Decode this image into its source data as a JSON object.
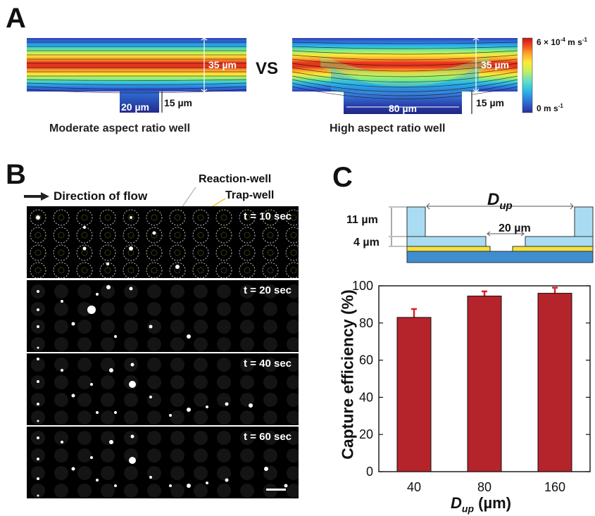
{
  "panelA": {
    "letter": "A",
    "vs_label": "VS",
    "left_caption": "Moderate aspect ratio well",
    "right_caption": "High aspect ratio well",
    "left_channel_height": "35 µm",
    "left_well_width": "20 µm",
    "left_well_depth": "15 µm",
    "right_channel_height": "35 µm",
    "right_well_width": "80 µm",
    "right_well_depth": "15 µm",
    "colorbar_max": "6 × 10",
    "colorbar_max_exp": "-4",
    "colorbar_max_unit": " m s",
    "colorbar_max_unit_exp": "-1",
    "colorbar_min": "0 m s",
    "colorbar_min_exp": "-1",
    "colormap": [
      "#2b2f9a",
      "#2f6fd6",
      "#2bb3e6",
      "#5fe0c8",
      "#c8f05a",
      "#ffe93a",
      "#ff9d2a",
      "#ee4a1f",
      "#c8141c"
    ]
  },
  "panelB": {
    "letter": "B",
    "flow_label": "Direction of flow",
    "reaction_well_label": "Reaction-well",
    "trap_well_label": "Trap-well",
    "frames": [
      {
        "time": "t = 10 sec"
      },
      {
        "time": "t = 20 sec"
      },
      {
        "time": "t = 40 sec"
      },
      {
        "time": "t = 60 sec"
      }
    ]
  },
  "panelC": {
    "letter": "C",
    "schematic_dup_main": "D",
    "schematic_dup_sub": "up",
    "schematic_height_11": "11 µm",
    "schematic_height_4": "4 µm",
    "schematic_gap": "20 µm"
  },
  "chart_data": {
    "type": "bar",
    "categories": [
      "40",
      "80",
      "160"
    ],
    "values": [
      83,
      94.5,
      96
    ],
    "errors": [
      4.5,
      2.5,
      3
    ],
    "ylabel": "Capture efficiency (%)",
    "xlabel_main": "D",
    "xlabel_sub": "up",
    "xlabel_unit": " (µm)",
    "ylim": [
      0,
      100
    ],
    "yticks": [
      "0",
      "20",
      "40",
      "60",
      "80",
      "100"
    ],
    "bar_color": "#b5232b",
    "error_color": "#d8232a"
  }
}
